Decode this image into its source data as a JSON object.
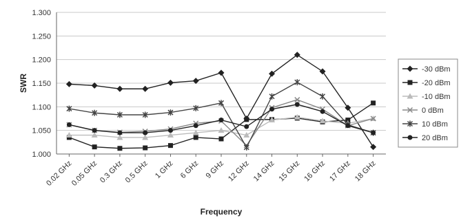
{
  "chart_data": {
    "type": "line",
    "xlabel": "Frequency",
    "ylabel": "SWR",
    "ylim": [
      1.0,
      1.3
    ],
    "yticks": [
      "1.000",
      "1.050",
      "1.100",
      "1.150",
      "1.200",
      "1.250",
      "1.300"
    ],
    "grid": "horizontal",
    "legend_position": "right",
    "categories": [
      "0.02 GHz",
      "0.05 GHz",
      "0.3 GHz",
      "0.5 GHz",
      "1 GHz",
      "6 GHz",
      "9 GHz",
      "12 GHz",
      "14 GHz",
      "15 GHz",
      "16 GHz",
      "17 GHz",
      "18 GHz"
    ],
    "series": [
      {
        "name": "-30 dBm",
        "marker": "diamond",
        "color": "#222222",
        "values": [
          1.148,
          1.145,
          1.138,
          1.138,
          1.151,
          1.155,
          1.172,
          1.075,
          1.17,
          1.21,
          1.175,
          1.098,
          1.015
        ]
      },
      {
        "name": "-20 dBm",
        "marker": "square",
        "color": "#222222",
        "values": [
          1.035,
          1.015,
          1.012,
          1.013,
          1.018,
          1.035,
          1.032,
          1.073,
          1.073,
          1.076,
          1.068,
          1.072,
          1.108
        ]
      },
      {
        "name": "-10 dBm",
        "marker": "triangle",
        "color": "#bbbbbb",
        "values": [
          1.04,
          1.04,
          1.035,
          1.035,
          1.04,
          1.045,
          1.05,
          1.04,
          1.072,
          1.078,
          1.07,
          1.065,
          1.075
        ]
      },
      {
        "name": "0 dBm",
        "marker": "x",
        "color": "#888888",
        "values": [
          1.062,
          1.05,
          1.046,
          1.048,
          1.053,
          1.065,
          1.07,
          1.018,
          1.098,
          1.115,
          1.095,
          1.06,
          1.075
        ]
      },
      {
        "name": "10 dBm",
        "marker": "star",
        "color": "#444444",
        "values": [
          1.096,
          1.087,
          1.083,
          1.083,
          1.088,
          1.097,
          1.108,
          1.014,
          1.122,
          1.152,
          1.122,
          1.062,
          1.045
        ]
      },
      {
        "name": "20 dBm",
        "marker": "circle",
        "color": "#222222",
        "values": [
          1.062,
          1.05,
          1.045,
          1.045,
          1.05,
          1.06,
          1.072,
          1.058,
          1.095,
          1.105,
          1.09,
          1.06,
          1.045
        ]
      }
    ]
  }
}
